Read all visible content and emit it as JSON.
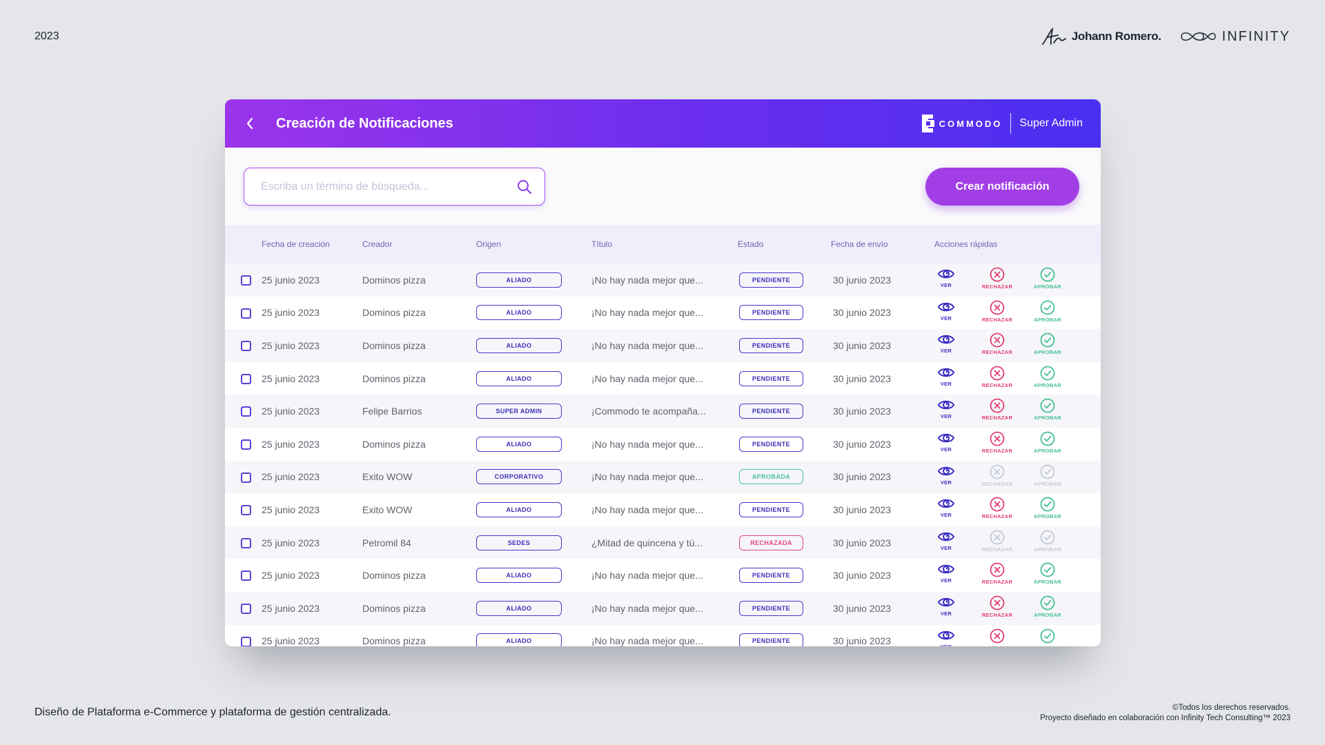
{
  "slide": {
    "year": "2023",
    "author": "Johann Romero.",
    "partner": "INFINITY",
    "footer_left": "Diseño de Plataforma e-Commerce y plataforma de gestión centralizada.",
    "footer_right_1": "©Todos los derechos reservados.",
    "footer_right_2": "Proyecto diseñado en colaboración con Infinity Tech Consulting™ 2023"
  },
  "app": {
    "title": "Creación de Notificaciones",
    "brand": "COMMODO",
    "role": "Super Admin",
    "search_placeholder": "Escriba un término de búsqueda...",
    "create_label": "Crear notificación",
    "colors": {
      "gradient_start": "#9b35ea",
      "gradient_end": "#4a2ff0",
      "primary_button": "#a23ee6"
    }
  },
  "table": {
    "headers": {
      "fecha": "Fecha de creación",
      "creador": "Creador",
      "origen": "Origen",
      "titulo": "Título",
      "estado": "Estado",
      "envio": "Fecha de envío",
      "acciones": "Acciones rápidas"
    },
    "action_labels": {
      "ver": "VER",
      "rechazar": "RECHAZAR",
      "aprobar": "APROBAR"
    },
    "rows": [
      {
        "fecha": "25 junio 2023",
        "creador": "Dominos pizza",
        "origen": "ALIADO",
        "titulo": "¡No hay nada mejor que...",
        "estado": "PENDIENTE",
        "envio": "30 junio 2023"
      },
      {
        "fecha": "25 junio 2023",
        "creador": "Dominos pizza",
        "origen": "ALIADO",
        "titulo": "¡No hay nada mejor que...",
        "estado": "PENDIENTE",
        "envio": "30 junio 2023"
      },
      {
        "fecha": "25 junio 2023",
        "creador": "Dominos pizza",
        "origen": "ALIADO",
        "titulo": "¡No hay nada mejor que...",
        "estado": "PENDIENTE",
        "envio": "30 junio 2023"
      },
      {
        "fecha": "25 junio 2023",
        "creador": "Dominos pizza",
        "origen": "ALIADO",
        "titulo": "¡No hay nada mejor que...",
        "estado": "PENDIENTE",
        "envio": "30 junio 2023"
      },
      {
        "fecha": "25 junio 2023",
        "creador": "Felipe Barrios",
        "origen": "SUPER ADMIN",
        "titulo": "¡Commodo te acompaña...",
        "estado": "PENDIENTE",
        "envio": "30 junio 2023"
      },
      {
        "fecha": "25 junio 2023",
        "creador": "Dominos pizza",
        "origen": "ALIADO",
        "titulo": "¡No hay nada mejor que...",
        "estado": "PENDIENTE",
        "envio": "30 junio 2023"
      },
      {
        "fecha": "25 junio 2023",
        "creador": "Exito WOW",
        "origen": "CORPORATIVO",
        "titulo": "¡No hay nada mejor que...",
        "estado": "APROBADA",
        "envio": "30 junio 2023"
      },
      {
        "fecha": "25 junio 2023",
        "creador": "Exito WOW",
        "origen": "ALIADO",
        "titulo": "¡No hay nada mejor que...",
        "estado": "PENDIENTE",
        "envio": "30 junio 2023"
      },
      {
        "fecha": "25 junio 2023",
        "creador": "Petromil 84",
        "origen": "SEDES",
        "titulo": "¿Mitad de quincena y tú...",
        "estado": "RECHAZADA",
        "envio": "30 junio 2023"
      },
      {
        "fecha": "25 junio 2023",
        "creador": "Dominos pizza",
        "origen": "ALIADO",
        "titulo": "¡No hay nada mejor que...",
        "estado": "PENDIENTE",
        "envio": "30 junio 2023"
      },
      {
        "fecha": "25 junio 2023",
        "creador": "Dominos pizza",
        "origen": "ALIADO",
        "titulo": "¡No hay nada mejor que...",
        "estado": "PENDIENTE",
        "envio": "30 junio 2023"
      },
      {
        "fecha": "25 junio 2023",
        "creador": "Dominos pizza",
        "origen": "ALIADO",
        "titulo": "¡No hay nada mejor que...",
        "estado": "PENDIENTE",
        "envio": "30 junio 2023"
      }
    ]
  }
}
